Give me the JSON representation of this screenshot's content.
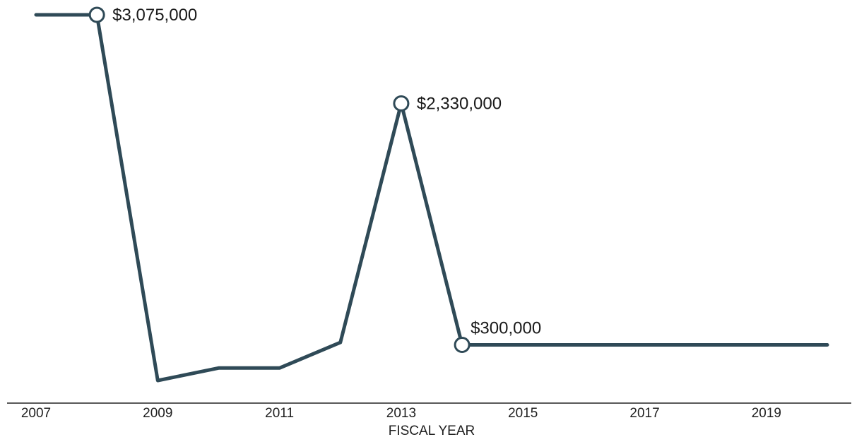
{
  "chart_data": {
    "type": "line",
    "title": "",
    "xlabel": "FISCAL YEAR",
    "ylabel": "",
    "x": [
      2007,
      2008,
      2009,
      2010,
      2011,
      2012,
      2013,
      2014,
      2015,
      2016,
      2017,
      2018,
      2019,
      2020
    ],
    "series": [
      {
        "values": [
          3075000,
          3075000,
          0,
          105000,
          105000,
          320000,
          2330000,
          300000,
          300000,
          300000,
          300000,
          300000,
          300000,
          300000
        ]
      }
    ],
    "xticks": [
      "2007",
      "2009",
      "2011",
      "2013",
      "2015",
      "2017",
      "2019"
    ],
    "xlim": [
      2007,
      2020
    ],
    "ylim": [
      0,
      3075000
    ],
    "grid": false,
    "annotations": [
      {
        "x": 2008,
        "y": 3075000,
        "text": "$3,075,000"
      },
      {
        "x": 2013,
        "y": 2330000,
        "text": "$2,330,000"
      },
      {
        "x": 2014,
        "y": 300000,
        "text": "$300,000"
      }
    ],
    "colors": {
      "line": "#2f4a57",
      "axis": "#222222",
      "marker_fill": "#ffffff"
    }
  }
}
